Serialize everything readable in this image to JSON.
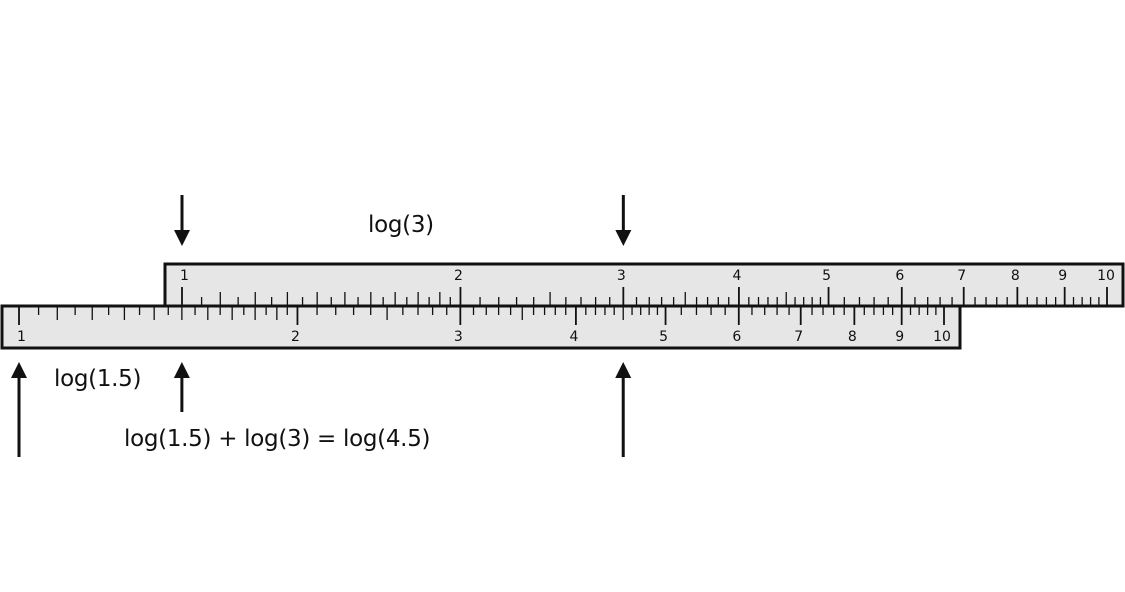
{
  "captions": {
    "top": "log(3)",
    "left": "log(1.5)",
    "sum": "log(1.5) + log(3) = log(4.5)"
  },
  "upper_rule": {
    "name": "slide",
    "start_value": 1,
    "end_value": 10,
    "labels": [
      "1",
      "2",
      "3",
      "4",
      "5",
      "6",
      "7",
      "8",
      "9",
      "10"
    ]
  },
  "lower_rule": {
    "name": "stock",
    "start_value": 1,
    "end_value": 10,
    "labels": [
      "1",
      "2",
      "3",
      "4",
      "5",
      "6",
      "7",
      "8",
      "9",
      "10"
    ]
  },
  "pointers": [
    {
      "id": "down-at-upper-1",
      "direction": "down",
      "rule": "upper",
      "value": 1
    },
    {
      "id": "down-at-upper-3",
      "direction": "down",
      "rule": "upper",
      "value": 3
    },
    {
      "id": "up-at-lower-1",
      "direction": "up",
      "rule": "lower",
      "value": 1
    },
    {
      "id": "up-at-lower-1.5",
      "direction": "up",
      "rule": "lower",
      "value": 1.5
    },
    {
      "id": "up-at-lower-4.5",
      "direction": "up",
      "rule": "lower",
      "value": 4.5
    }
  ],
  "colors": {
    "rule_fill": "#e6e6e6",
    "ink": "#111111"
  }
}
